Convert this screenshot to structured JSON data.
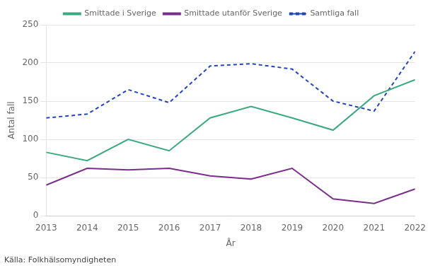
{
  "chart_data": {
    "type": "line",
    "x": [
      2013,
      2014,
      2015,
      2016,
      2017,
      2018,
      2019,
      2020,
      2021,
      2022
    ],
    "series": [
      {
        "name": "Smittade i Sverige",
        "color": "#3aaa7e",
        "line_style": "solid",
        "values": [
          83,
          72,
          100,
          85,
          128,
          143,
          128,
          112,
          157,
          178
        ]
      },
      {
        "name": "Smittade utanför Sverige",
        "color": "#7b2d8b",
        "line_style": "solid",
        "values": [
          40,
          62,
          60,
          62,
          52,
          48,
          62,
          22,
          16,
          35
        ]
      },
      {
        "name": "Samtliga fall",
        "color": "#2244bb",
        "line_style": "dashed",
        "values": [
          128,
          133,
          165,
          148,
          196,
          199,
          192,
          150,
          137,
          215
        ]
      }
    ],
    "xlabel": "År",
    "ylabel": "Antal fall",
    "source": "Källa: Folkhälsomyndigheten",
    "xlim": [
      2013,
      2022
    ],
    "xticks": [
      2013,
      2014,
      2015,
      2016,
      2017,
      2018,
      2019,
      2020,
      2021,
      2022
    ],
    "ylim": [
      0,
      250
    ],
    "yticks": [
      0,
      50,
      100,
      150,
      200,
      250
    ],
    "grid": "y",
    "legend": "top"
  }
}
